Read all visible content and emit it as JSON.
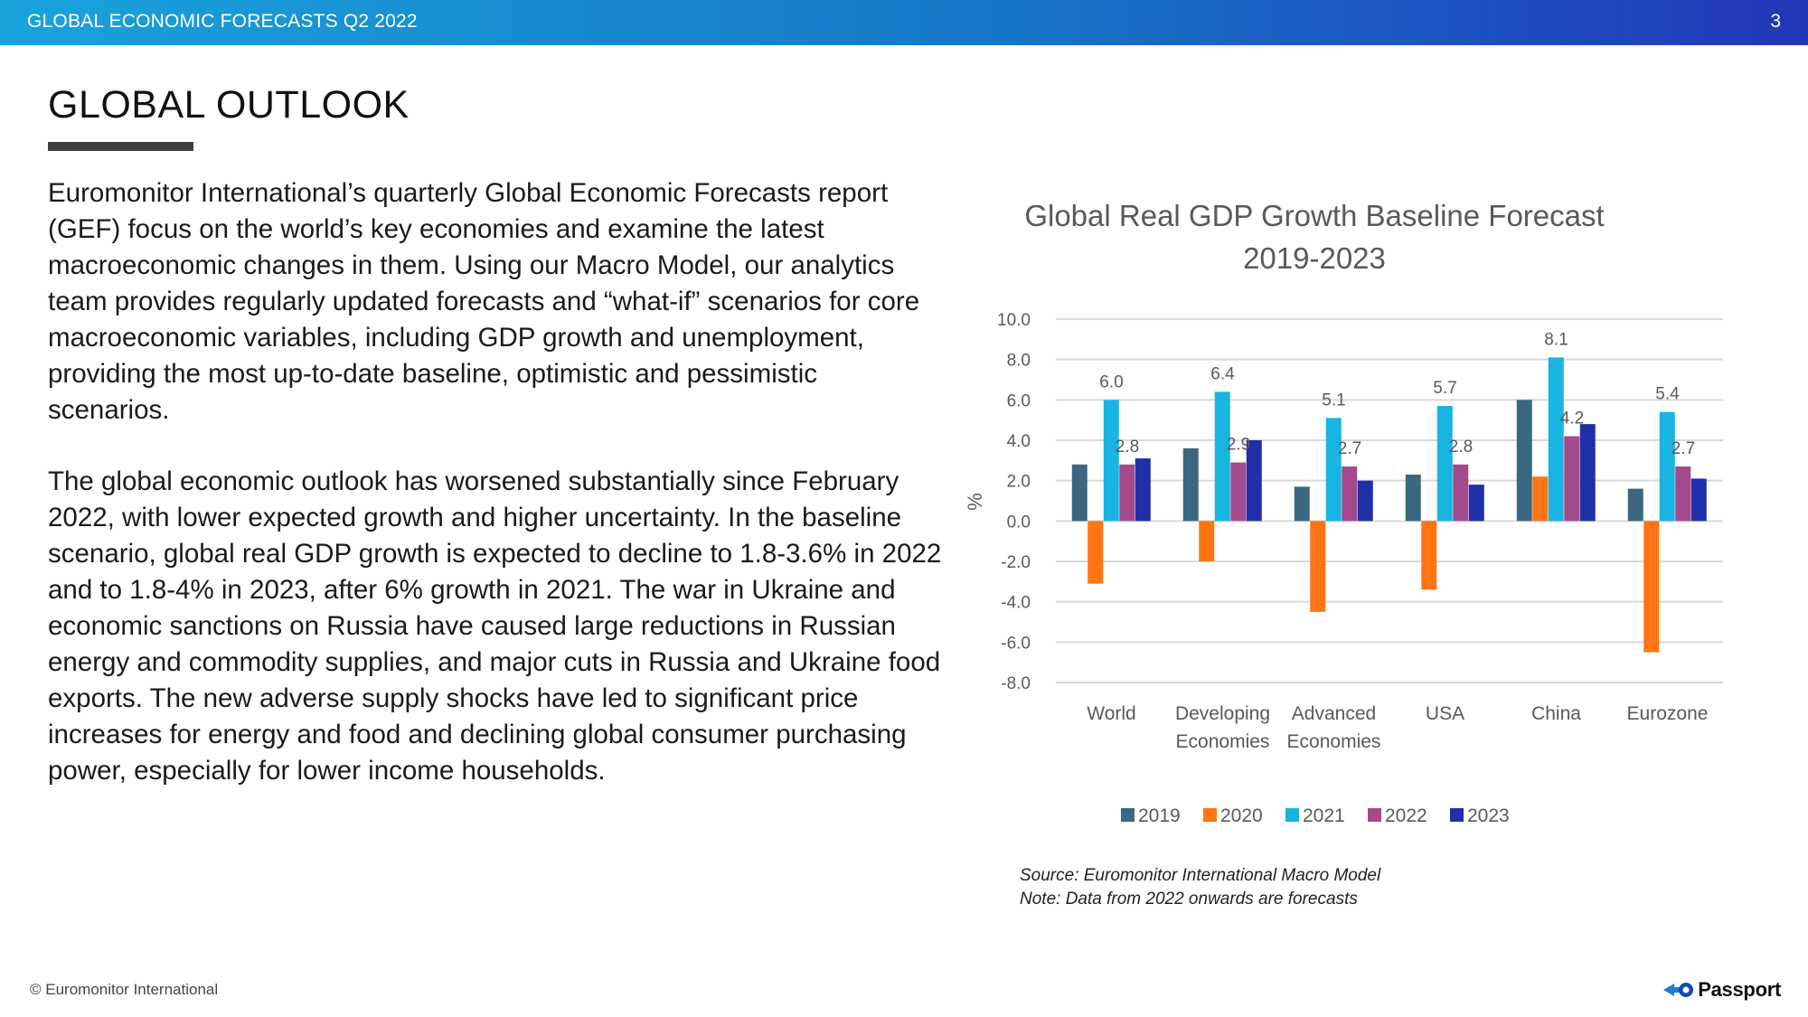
{
  "header": {
    "title": "GLOBAL ECONOMIC FORECASTS Q2 2022",
    "page_number": "3"
  },
  "page_title": "GLOBAL OUTLOOK",
  "paragraphs": [
    "Euromonitor International’s quarterly Global Economic Forecasts report\n(GEF) focus on the world’s key economies and examine the latest\nmacroeconomic changes in them. Using our Macro Model, our analytics\nteam provides regularly updated forecasts and “what-if” scenarios for core\nmacroeconomic variables, including GDP growth and unemployment,\nproviding the most up-to-date baseline, optimistic and pessimistic\nscenarios.",
    "The global economic outlook has worsened substantially since February\n2022, with lower expected growth and higher uncertainty. In the baseline\nscenario, global real GDP growth is expected to decline to 1.8-3.6% in 2022\nand to 1.8-4% in 2023, after 6% growth in 2021. The war in Ukraine and\neconomic sanctions on Russia have caused large reductions in Russian\nenergy and commodity supplies, and major cuts in Russia and Ukraine food\nexports. The new adverse supply shocks have led to significant price\nincreases for energy and food and declining global consumer purchasing\npower, especially for lower income households."
  ],
  "chart_data": {
    "type": "bar",
    "title": "Global Real GDP Growth Baseline Forecast",
    "subtitle": "2019-2023",
    "xlabel": "",
    "ylabel": "%",
    "ylim": [
      -8.0,
      10.0
    ],
    "yticks": [
      10.0,
      8.0,
      6.0,
      4.0,
      2.0,
      0.0,
      -2.0,
      -4.0,
      -6.0,
      -8.0
    ],
    "ytick_labels": [
      "10.0",
      "8.0",
      "6.0",
      "4.0",
      "2.0",
      "0.0",
      "-2.0",
      "-4.0",
      "-6.0",
      "-8.0"
    ],
    "grid": true,
    "legend_position": "bottom",
    "categories": [
      [
        "World"
      ],
      [
        "Developing",
        "Economies"
      ],
      [
        "Advanced",
        "Economies"
      ],
      [
        "USA"
      ],
      [
        "China"
      ],
      [
        "Eurozone"
      ]
    ],
    "series": [
      {
        "name": "2019",
        "color": "#3b6880",
        "values": [
          2.8,
          3.6,
          1.7,
          2.3,
          6.0,
          1.6
        ]
      },
      {
        "name": "2020",
        "color": "#ff7515",
        "values": [
          -3.1,
          -2.0,
          -4.5,
          -3.4,
          2.2,
          -6.5
        ]
      },
      {
        "name": "2021",
        "color": "#18b4e2",
        "values": [
          6.0,
          6.4,
          5.1,
          5.7,
          8.1,
          5.4
        ],
        "labels": [
          "6.0",
          "6.4",
          "5.1",
          "5.7",
          "8.1",
          "5.4"
        ]
      },
      {
        "name": "2022",
        "color": "#a34a8c",
        "values": [
          2.8,
          2.9,
          2.7,
          2.8,
          4.2,
          2.7
        ],
        "labels": [
          "2.8",
          "2.9",
          "2.7",
          "2.8",
          "4.2",
          "2.7"
        ]
      },
      {
        "name": "2023",
        "color": "#1f2fa8",
        "values": [
          3.1,
          4.0,
          2.0,
          1.8,
          4.8,
          2.1
        ]
      }
    ]
  },
  "source_note": [
    "Source: Euromonitor International Macro Model",
    "Note: Data from 2022 onwards are forecasts"
  ],
  "footer": {
    "copyright": "© Euromonitor International",
    "logo_text": "Passport"
  },
  "colors": {
    "header_gradient_start": "#19a3dc",
    "header_gradient_end": "#2236b8",
    "underline": "#404040"
  }
}
